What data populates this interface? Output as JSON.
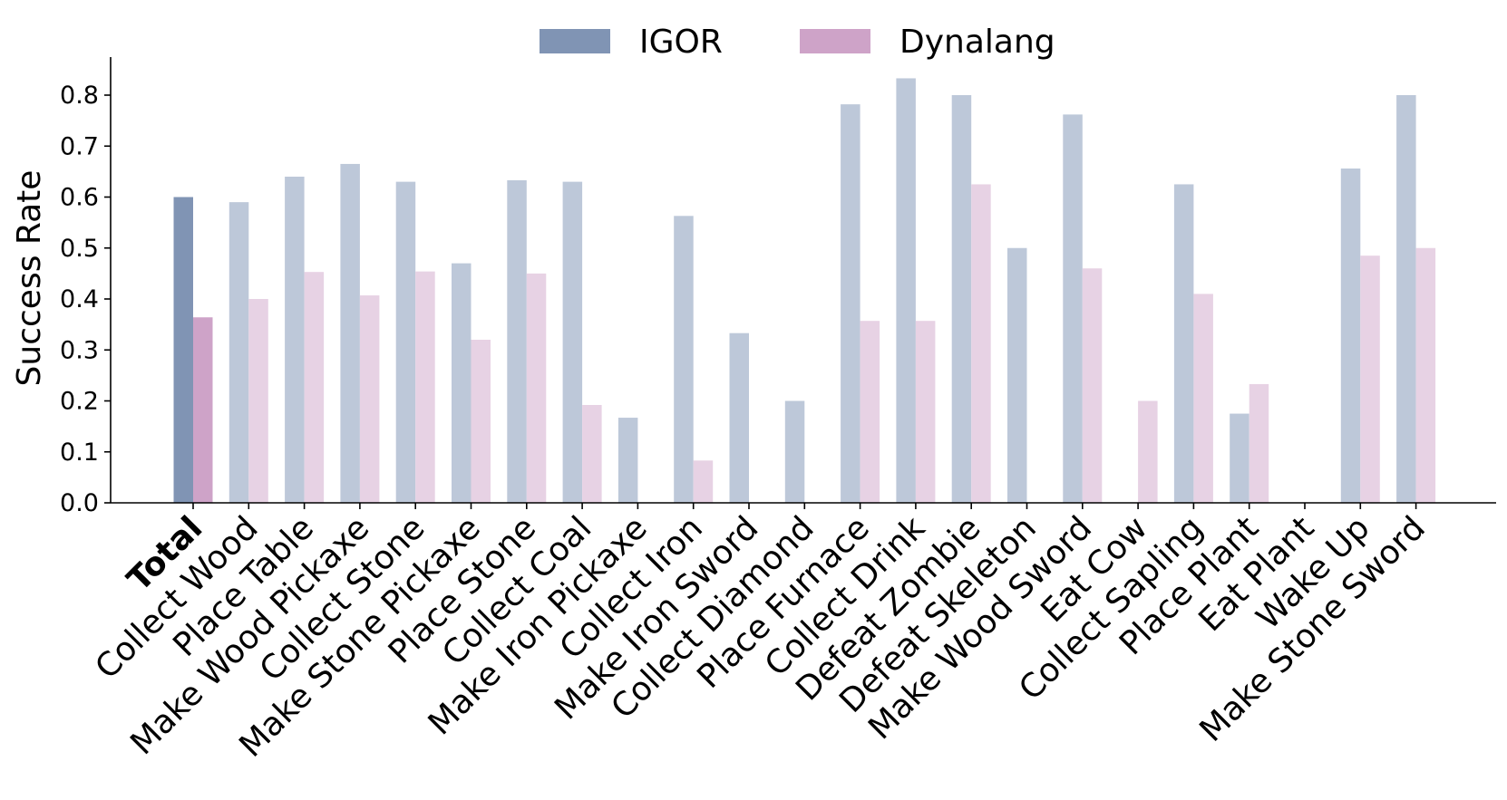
{
  "chart_data": {
    "type": "bar",
    "title": "",
    "xlabel": "",
    "ylabel": "Success Rate",
    "ylim": [
      0,
      0.87
    ],
    "yticks": [
      "0.0",
      "0.1",
      "0.2",
      "0.3",
      "0.4",
      "0.5",
      "0.6",
      "0.7",
      "0.8"
    ],
    "grid": false,
    "legend_position": "top-center",
    "highlighted_category": "Total",
    "categories": [
      "Total",
      "Collect Wood",
      "Place Table",
      "Make Wood Pickaxe",
      "Collect Stone",
      "Make Stone Pickaxe",
      "Place Stone",
      "Collect Coal",
      "Make Iron Pickaxe",
      "Collect Iron",
      "Make Iron Sword",
      "Collect Diamond",
      "Place Furnace",
      "Collect Drink",
      "Defeat Zombie",
      "Defeat Skeleton",
      "Make Wood Sword",
      "Eat Cow",
      "Collect Sapling",
      "Place Plant",
      "Eat Plant",
      "Wake Up",
      "Make Stone Sword"
    ],
    "series": [
      {
        "name": "IGOR",
        "color": "#8094b4",
        "light_color": "#bdc8d9",
        "values": [
          0.6,
          0.59,
          0.64,
          0.665,
          0.63,
          0.47,
          0.633,
          0.63,
          0.167,
          0.563,
          0.333,
          0.2,
          0.782,
          0.833,
          0.8,
          0.5,
          0.762,
          0.0,
          0.625,
          0.175,
          0.0,
          0.656,
          0.8
        ]
      },
      {
        "name": "Dynalang",
        "color": "#cea3c8",
        "light_color": "#e7d2e4",
        "values": [
          0.364,
          0.4,
          0.453,
          0.407,
          0.454,
          0.32,
          0.45,
          0.192,
          0.0,
          0.083,
          0.0,
          0.0,
          0.357,
          0.357,
          0.625,
          0.0,
          0.46,
          0.2,
          0.41,
          0.233,
          0.0,
          0.485,
          0.5
        ]
      }
    ]
  }
}
